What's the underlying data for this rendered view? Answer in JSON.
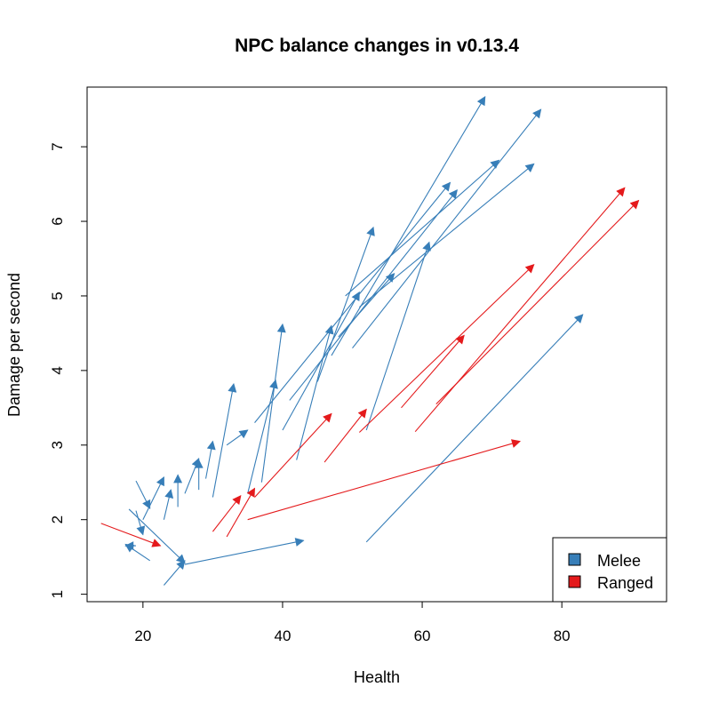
{
  "chart_data": {
    "type": "arrow",
    "title": "NPC balance changes in v0.13.4",
    "xlabel": "Health",
    "ylabel": "Damage per second",
    "xlim": [
      12,
      95
    ],
    "ylim": [
      0.9,
      7.8
    ],
    "x_ticks": [
      20,
      40,
      60,
      80
    ],
    "y_ticks": [
      1,
      2,
      3,
      4,
      5,
      6,
      7
    ],
    "legend": {
      "position": "bottom-right",
      "entries": [
        {
          "label": "Melee",
          "color": "#377EB8"
        },
        {
          "label": "Ranged",
          "color": "#E41A1C"
        }
      ]
    },
    "series": [
      {
        "name": "Melee",
        "color": "#377EB8",
        "arrows": [
          {
            "x0": 52,
            "y0": 1.7,
            "x1": 83,
            "y1": 4.75
          },
          {
            "x0": 23,
            "y0": 1.12,
            "x1": 26,
            "y1": 1.45
          },
          {
            "x0": 26,
            "y0": 1.4,
            "x1": 43,
            "y1": 1.72
          },
          {
            "x0": 18,
            "y0": 2.14,
            "x1": 26,
            "y1": 1.42
          },
          {
            "x0": 21,
            "y0": 1.45,
            "x1": 17.5,
            "y1": 1.67
          },
          {
            "x0": 19,
            "y0": 1.65,
            "x1": 17.5,
            "y1": 1.65
          },
          {
            "x0": 19,
            "y0": 2.12,
            "x1": 20,
            "y1": 1.8
          },
          {
            "x0": 19,
            "y0": 2.52,
            "x1": 21,
            "y1": 2.15
          },
          {
            "x0": 20,
            "y0": 2.0,
            "x1": 23,
            "y1": 2.57
          },
          {
            "x0": 23,
            "y0": 2.0,
            "x1": 24,
            "y1": 2.4
          },
          {
            "x0": 25,
            "y0": 2.17,
            "x1": 25,
            "y1": 2.6
          },
          {
            "x0": 26,
            "y0": 2.35,
            "x1": 28,
            "y1": 2.82
          },
          {
            "x0": 28,
            "y0": 2.4,
            "x1": 28,
            "y1": 2.8
          },
          {
            "x0": 29,
            "y0": 2.55,
            "x1": 30,
            "y1": 3.05
          },
          {
            "x0": 30,
            "y0": 2.3,
            "x1": 33,
            "y1": 3.82
          },
          {
            "x0": 32,
            "y0": 3.0,
            "x1": 35,
            "y1": 3.2
          },
          {
            "x0": 35,
            "y0": 2.35,
            "x1": 39,
            "y1": 3.87
          },
          {
            "x0": 37,
            "y0": 2.5,
            "x1": 40,
            "y1": 4.62
          },
          {
            "x0": 42,
            "y0": 2.8,
            "x1": 47,
            "y1": 4.6
          },
          {
            "x0": 40,
            "y0": 3.2,
            "x1": 51,
            "y1": 5.05
          },
          {
            "x0": 45,
            "y0": 3.85,
            "x1": 53,
            "y1": 5.92
          },
          {
            "x0": 52,
            "y0": 3.2,
            "x1": 61,
            "y1": 5.72
          },
          {
            "x0": 36,
            "y0": 3.3,
            "x1": 64,
            "y1": 6.52
          },
          {
            "x0": 41,
            "y0": 3.6,
            "x1": 65,
            "y1": 6.42
          },
          {
            "x0": 47,
            "y0": 4.2,
            "x1": 69,
            "y1": 7.67
          },
          {
            "x0": 48,
            "y0": 4.45,
            "x1": 56,
            "y1": 5.3
          },
          {
            "x0": 49,
            "y0": 5.0,
            "x1": 71,
            "y1": 6.82
          },
          {
            "x0": 50,
            "y0": 4.3,
            "x1": 77,
            "y1": 7.5
          },
          {
            "x0": 51,
            "y0": 4.85,
            "x1": 76,
            "y1": 6.77
          }
        ]
      },
      {
        "name": "Ranged",
        "color": "#E41A1C",
        "arrows": [
          {
            "x0": 14,
            "y0": 1.95,
            "x1": 22.5,
            "y1": 1.65
          },
          {
            "x0": 30,
            "y0": 1.84,
            "x1": 34,
            "y1": 2.32
          },
          {
            "x0": 32,
            "y0": 1.77,
            "x1": 36,
            "y1": 2.42
          },
          {
            "x0": 35,
            "y0": 2.0,
            "x1": 74,
            "y1": 3.05
          },
          {
            "x0": 36,
            "y0": 2.3,
            "x1": 47,
            "y1": 3.42
          },
          {
            "x0": 46,
            "y0": 2.77,
            "x1": 52,
            "y1": 3.48
          },
          {
            "x0": 51,
            "y0": 3.17,
            "x1": 76,
            "y1": 5.42
          },
          {
            "x0": 57,
            "y0": 3.5,
            "x1": 66,
            "y1": 4.47
          },
          {
            "x0": 59,
            "y0": 3.18,
            "x1": 89,
            "y1": 6.45
          },
          {
            "x0": 62,
            "y0": 3.55,
            "x1": 91,
            "y1": 6.28
          }
        ]
      }
    ]
  }
}
